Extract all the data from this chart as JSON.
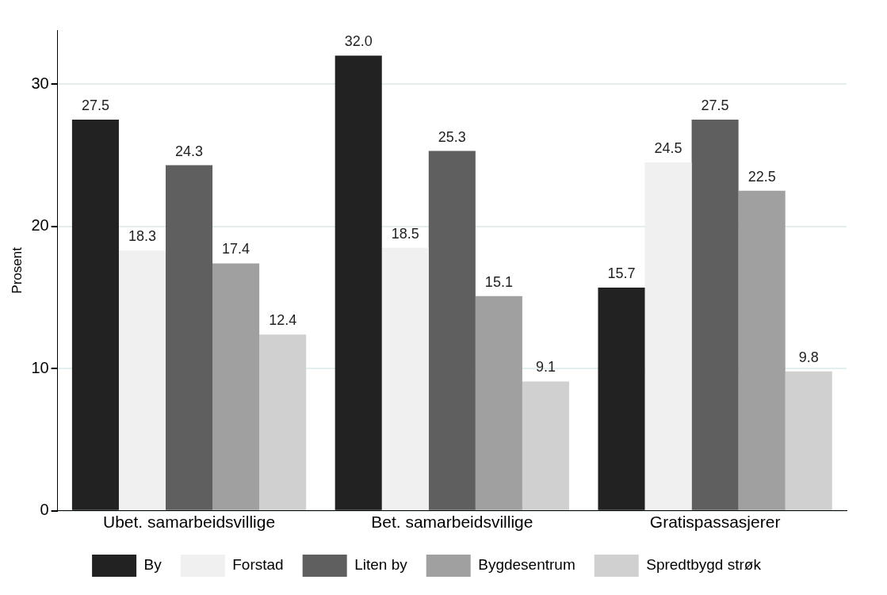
{
  "chart_data": {
    "type": "bar",
    "ylabel": "Prosent",
    "categories": [
      "Ubet. samarbeidsvillige",
      "Bet. samarbeidsvillige",
      "Gratispassasjerer"
    ],
    "series": [
      {
        "name": "By",
        "color": "#222222",
        "values": [
          27.5,
          32.0,
          15.7
        ],
        "value_labels": [
          "27.5",
          "32.0",
          "15.7"
        ]
      },
      {
        "name": "Forstad",
        "color": "#f0f0f0",
        "values": [
          18.3,
          18.5,
          24.5
        ],
        "value_labels": [
          "18.3",
          "18.5",
          "24.5"
        ]
      },
      {
        "name": "Liten by",
        "color": "#5f5f5f",
        "values": [
          24.3,
          25.3,
          27.5
        ],
        "value_labels": [
          "24.3",
          "25.3",
          "27.5"
        ]
      },
      {
        "name": "Bygdesentrum",
        "color": "#a0a0a0",
        "values": [
          17.4,
          15.1,
          22.5
        ],
        "value_labels": [
          "17.4",
          "15.1",
          "22.5"
        ]
      },
      {
        "name": "Spredtbygd strøk",
        "color": "#d0d0d0",
        "values": [
          12.4,
          9.1,
          9.8
        ],
        "value_labels": [
          "12.4",
          "9.1",
          "9.8"
        ]
      }
    ],
    "ylim": [
      0,
      33.8
    ],
    "yticks": [
      0,
      10,
      20,
      30
    ],
    "grid": "y",
    "legend": "bottom"
  }
}
